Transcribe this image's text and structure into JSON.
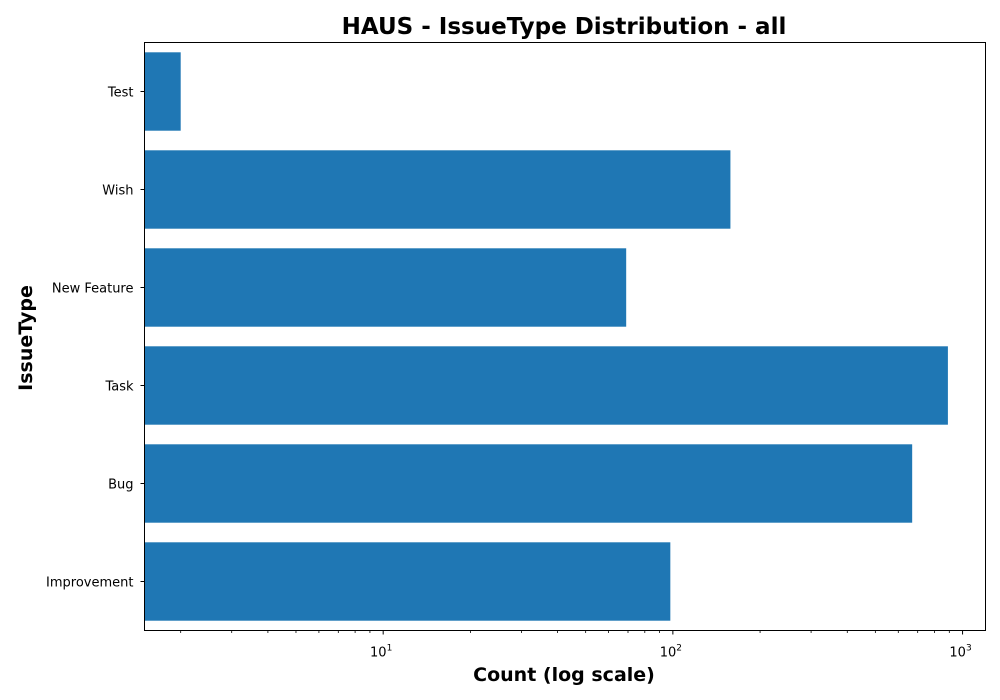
{
  "chart_data": {
    "type": "bar",
    "orientation": "horizontal",
    "title": "HAUS - IssueType Distribution - all",
    "xlabel": "Count (log scale)",
    "ylabel": "IssueType",
    "xscale": "log",
    "xlim": [
      1.5,
      1200
    ],
    "x_ticks": [
      {
        "value": 10,
        "base": "10",
        "exp": "1"
      },
      {
        "value": 100,
        "base": "10",
        "exp": "2"
      },
      {
        "value": 1000,
        "base": "10",
        "exp": "3"
      }
    ],
    "categories": [
      "Improvement",
      "Bug",
      "Task",
      "New Feature",
      "Wish",
      "Test"
    ],
    "values": [
      98,
      670,
      890,
      69,
      158,
      2
    ],
    "bar_color": "#1f77b4",
    "grid": false,
    "legend": "none"
  }
}
